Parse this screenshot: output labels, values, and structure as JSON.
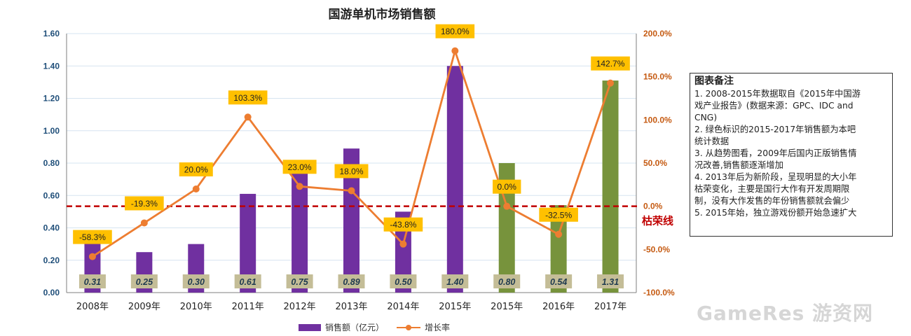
{
  "chart_data": {
    "type": "bar+line",
    "title": "国游单机市场销售额",
    "categories": [
      "2008年",
      "2009年",
      "2010年",
      "2011年",
      "2012年",
      "2013年",
      "2014年",
      "2015年",
      "2015年",
      "2016年",
      "2017年"
    ],
    "series": [
      {
        "name": "销售额（亿元）",
        "type": "bar",
        "values": [
          0.31,
          0.25,
          0.3,
          0.61,
          0.75,
          0.89,
          0.5,
          1.4,
          0.8,
          0.54,
          1.31
        ],
        "value_labels": [
          "0.31",
          "0.25",
          "0.30",
          "0.61",
          "0.75",
          "0.89",
          "0.50",
          "1.40",
          "0.80",
          "0.54",
          "1.31"
        ],
        "colors": [
          "purple",
          "purple",
          "purple",
          "purple",
          "purple",
          "purple",
          "purple",
          "purple",
          "green",
          "green",
          "green"
        ]
      },
      {
        "name": "增长率",
        "type": "line",
        "axis": "right",
        "values": [
          -58.3,
          -19.3,
          20.0,
          103.3,
          23.0,
          18.0,
          -43.8,
          180.0,
          0.0,
          -32.5,
          142.7
        ],
        "value_labels": [
          "-58.3%",
          "-19.3%",
          "20.0%",
          "103.3%",
          "23.0%",
          "18.0%",
          "-43.8%",
          "180.0%",
          "0.0%",
          "-32.5%",
          "142.7%"
        ]
      }
    ],
    "y_left": {
      "min": 0,
      "max": 1.6,
      "step": 0.2,
      "ticks": [
        "0.00",
        "0.20",
        "0.40",
        "0.60",
        "0.80",
        "1.00",
        "1.20",
        "1.40",
        "1.60"
      ]
    },
    "y_right": {
      "min": -100,
      "max": 200,
      "step": 50,
      "ticks": [
        "-100.0%",
        "-50.0%",
        "0.0%",
        "50.0%",
        "100.0%",
        "150.0%",
        "200.0%"
      ]
    },
    "reference_line": {
      "label": "枯荣线",
      "axis": "right",
      "value": 0
    },
    "colors": {
      "purple": "#7030A0",
      "green": "#77933C",
      "line": "#ED7D31",
      "refline": "#C00000",
      "grid": "#D6E4F0",
      "callout": "#FFC000",
      "value_box": "#C4BD97",
      "left_axis_text": "#1F4E79",
      "right_axis_text": "#C55A11"
    }
  },
  "notes": {
    "title": "图表备注",
    "lines": [
      "1. 2008-2015年数据取自《2015年中国游",
      "戏产业报告》(数据来源：GPC、IDC and",
      "CNG)",
      "2. 绿色标识的2015-2017年销售额为本吧",
      "统计数据",
      "3. 从趋势图看，2009年后国内正版销售情",
      "况改善,销售额逐渐增加",
      "4. 2013年后为新阶段，呈现明显的大小年",
      "枯荣变化，主要是国行大作有开发周期限",
      "制，没有大作发售的年份销售额就会偏少",
      "5. 2015年始，独立游戏份额开始急速扩大"
    ]
  },
  "legend": {
    "bar_label": "销售额（亿元）",
    "line_label": "增长率"
  },
  "watermark": "GameRes 游资网"
}
